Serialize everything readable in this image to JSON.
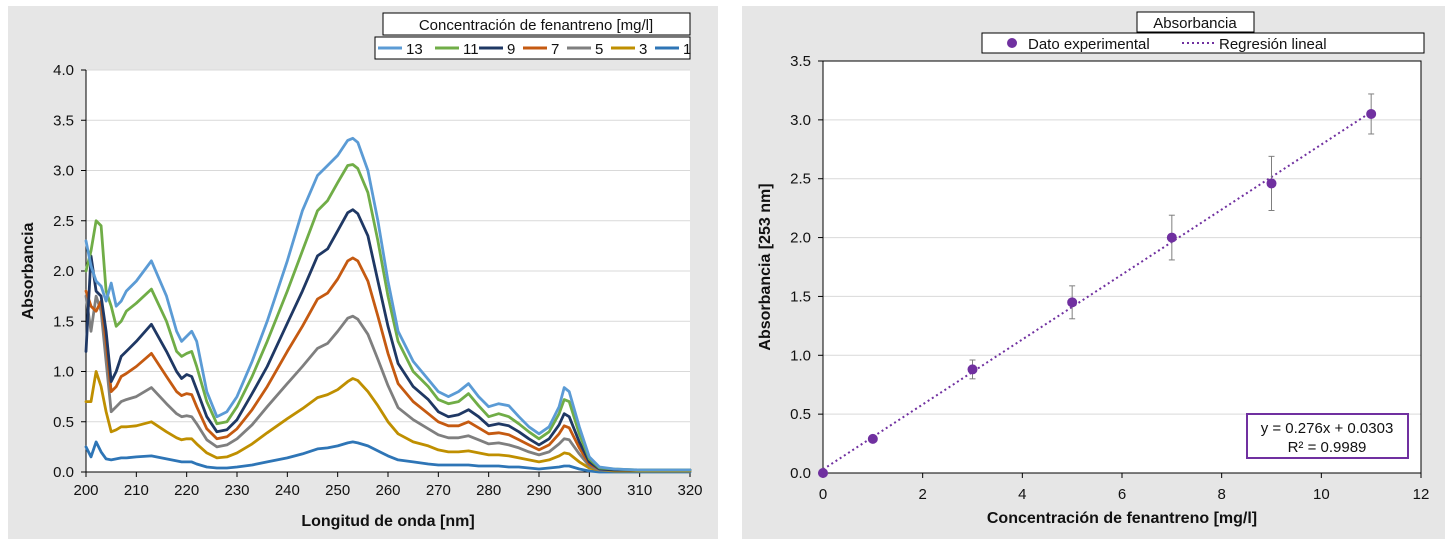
{
  "chart_data": [
    {
      "type": "line",
      "title": "",
      "xlabel": "Longitud de onda [nm]",
      "ylabel": "Absorbancia",
      "xlim": [
        200,
        320
      ],
      "ylim": [
        0,
        4
      ],
      "xticks": [
        "200",
        "210",
        "220",
        "230",
        "240",
        "250",
        "260",
        "270",
        "280",
        "290",
        "300",
        "310",
        "320"
      ],
      "yticks": [
        "0.0",
        "0.5",
        "1.0",
        "1.5",
        "2.0",
        "2.5",
        "3.0",
        "3.5",
        "4.0"
      ],
      "grid": "horizontal",
      "legend_title": "Concentración de fenantreno [mg/l]",
      "legend_position": "top-right",
      "x": [
        200,
        201,
        202,
        203,
        204,
        205,
        206,
        207,
        208,
        210,
        213,
        216,
        218,
        219,
        220,
        221,
        222,
        224,
        226,
        228,
        230,
        233,
        236,
        240,
        243,
        246,
        248,
        250,
        252,
        253,
        254,
        256,
        258,
        260,
        262,
        265,
        268,
        270,
        272,
        274,
        276,
        278,
        280,
        282,
        284,
        286,
        288,
        290,
        292,
        294,
        295,
        296,
        298,
        300,
        302,
        305,
        310,
        320
      ],
      "series": [
        {
          "name": "13",
          "color": "#5b9bd5",
          "values": [
            2.3,
            2.05,
            1.9,
            1.85,
            1.7,
            1.88,
            1.65,
            1.7,
            1.8,
            1.9,
            2.1,
            1.75,
            1.4,
            1.3,
            1.35,
            1.4,
            1.3,
            0.8,
            0.55,
            0.6,
            0.75,
            1.1,
            1.5,
            2.1,
            2.6,
            2.95,
            3.05,
            3.15,
            3.3,
            3.32,
            3.28,
            3.0,
            2.5,
            1.9,
            1.4,
            1.1,
            0.92,
            0.8,
            0.75,
            0.8,
            0.88,
            0.75,
            0.65,
            0.68,
            0.66,
            0.55,
            0.45,
            0.38,
            0.45,
            0.65,
            0.84,
            0.8,
            0.45,
            0.15,
            0.05,
            0.03,
            0.02,
            0.02
          ]
        },
        {
          "name": "11",
          "color": "#70ad47",
          "values": [
            2.0,
            2.2,
            2.5,
            2.45,
            1.8,
            1.65,
            1.45,
            1.5,
            1.6,
            1.68,
            1.82,
            1.5,
            1.2,
            1.15,
            1.18,
            1.2,
            1.05,
            0.7,
            0.48,
            0.5,
            0.65,
            0.95,
            1.3,
            1.8,
            2.2,
            2.6,
            2.7,
            2.88,
            3.05,
            3.06,
            3.02,
            2.78,
            2.3,
            1.75,
            1.3,
            1.0,
            0.85,
            0.72,
            0.68,
            0.7,
            0.78,
            0.66,
            0.55,
            0.58,
            0.55,
            0.48,
            0.4,
            0.33,
            0.4,
            0.58,
            0.72,
            0.7,
            0.38,
            0.13,
            0.04,
            0.03,
            0.02,
            0.02
          ]
        },
        {
          "name": "9",
          "color": "#1f3864",
          "values": [
            1.2,
            2.15,
            1.8,
            1.75,
            1.4,
            0.9,
            1.0,
            1.15,
            1.2,
            1.3,
            1.47,
            1.2,
            1.0,
            0.93,
            0.97,
            0.95,
            0.82,
            0.55,
            0.4,
            0.42,
            0.52,
            0.78,
            1.05,
            1.48,
            1.8,
            2.15,
            2.22,
            2.4,
            2.58,
            2.61,
            2.57,
            2.35,
            1.9,
            1.45,
            1.08,
            0.85,
            0.72,
            0.6,
            0.55,
            0.57,
            0.62,
            0.55,
            0.46,
            0.48,
            0.46,
            0.4,
            0.33,
            0.27,
            0.33,
            0.47,
            0.58,
            0.55,
            0.3,
            0.1,
            0.03,
            0.02,
            0.02,
            0.02
          ]
        },
        {
          "name": "7",
          "color": "#c55a11",
          "values": [
            1.8,
            1.65,
            1.6,
            1.7,
            1.3,
            0.8,
            0.85,
            0.95,
            0.98,
            1.05,
            1.18,
            0.95,
            0.8,
            0.76,
            0.78,
            0.77,
            0.65,
            0.43,
            0.33,
            0.35,
            0.43,
            0.62,
            0.85,
            1.2,
            1.45,
            1.72,
            1.78,
            1.92,
            2.1,
            2.13,
            2.1,
            1.9,
            1.55,
            1.18,
            0.88,
            0.7,
            0.58,
            0.5,
            0.46,
            0.46,
            0.5,
            0.44,
            0.38,
            0.39,
            0.37,
            0.32,
            0.27,
            0.22,
            0.27,
            0.38,
            0.46,
            0.44,
            0.24,
            0.08,
            0.03,
            0.02,
            0.02,
            0.02
          ]
        },
        {
          "name": "5",
          "color": "#7f7f7f",
          "values": [
            1.75,
            1.4,
            1.75,
            1.6,
            1.1,
            0.6,
            0.65,
            0.7,
            0.72,
            0.75,
            0.84,
            0.68,
            0.58,
            0.55,
            0.56,
            0.55,
            0.48,
            0.32,
            0.25,
            0.27,
            0.33,
            0.47,
            0.65,
            0.88,
            1.05,
            1.23,
            1.28,
            1.4,
            1.53,
            1.55,
            1.52,
            1.37,
            1.12,
            0.86,
            0.64,
            0.52,
            0.43,
            0.37,
            0.34,
            0.34,
            0.36,
            0.32,
            0.28,
            0.29,
            0.27,
            0.24,
            0.2,
            0.17,
            0.2,
            0.28,
            0.33,
            0.32,
            0.18,
            0.06,
            0.02,
            0.02,
            0.02,
            0.02
          ]
        },
        {
          "name": "3",
          "color": "#bf8f00",
          "values": [
            0.7,
            0.7,
            1.0,
            0.85,
            0.6,
            0.4,
            0.42,
            0.45,
            0.45,
            0.46,
            0.5,
            0.4,
            0.34,
            0.32,
            0.33,
            0.33,
            0.28,
            0.19,
            0.14,
            0.15,
            0.19,
            0.28,
            0.39,
            0.53,
            0.63,
            0.74,
            0.77,
            0.82,
            0.9,
            0.93,
            0.91,
            0.8,
            0.66,
            0.5,
            0.38,
            0.3,
            0.26,
            0.22,
            0.2,
            0.2,
            0.21,
            0.19,
            0.17,
            0.17,
            0.16,
            0.14,
            0.12,
            0.1,
            0.12,
            0.16,
            0.19,
            0.18,
            0.1,
            0.04,
            0.02,
            0.01,
            0.01,
            0.01
          ]
        },
        {
          "name": "1",
          "color": "#2e75b6",
          "values": [
            0.25,
            0.15,
            0.3,
            0.2,
            0.13,
            0.12,
            0.13,
            0.14,
            0.14,
            0.15,
            0.16,
            0.13,
            0.11,
            0.1,
            0.1,
            0.1,
            0.08,
            0.05,
            0.04,
            0.04,
            0.05,
            0.07,
            0.1,
            0.14,
            0.18,
            0.23,
            0.24,
            0.26,
            0.29,
            0.3,
            0.29,
            0.26,
            0.21,
            0.16,
            0.12,
            0.1,
            0.08,
            0.07,
            0.07,
            0.07,
            0.07,
            0.06,
            0.06,
            0.06,
            0.05,
            0.05,
            0.04,
            0.03,
            0.04,
            0.05,
            0.06,
            0.06,
            0.03,
            0.01,
            0.0,
            0.0,
            0.0,
            0.0
          ]
        }
      ]
    },
    {
      "type": "scatter",
      "title": "Absorbancia",
      "xlabel": "Concentración de fenantreno [mg/l]",
      "ylabel": "Absorbancia [253 nm]",
      "xlim": [
        0,
        12
      ],
      "ylim": [
        0,
        3.5
      ],
      "xticks": [
        "0",
        "2",
        "4",
        "6",
        "8",
        "10",
        "12"
      ],
      "yticks": [
        "0.0",
        "0.5",
        "1.0",
        "1.5",
        "2.0",
        "2.5",
        "3.0",
        "3.5"
      ],
      "grid": "horizontal",
      "legend_position": "top",
      "legend": [
        "Dato experimental",
        "Regresión lineal"
      ],
      "marker_color": "#7030a0",
      "points": [
        {
          "x": 0,
          "y": 0.0,
          "err": 0
        },
        {
          "x": 1,
          "y": 0.29,
          "err": 0
        },
        {
          "x": 3,
          "y": 0.88,
          "err": 0.08
        },
        {
          "x": 5,
          "y": 1.45,
          "err": 0.14
        },
        {
          "x": 7,
          "y": 2.0,
          "err": 0.19
        },
        {
          "x": 9,
          "y": 2.46,
          "err": 0.23
        },
        {
          "x": 11,
          "y": 3.05,
          "err": 0.17
        }
      ],
      "regression": {
        "slope": 0.276,
        "intercept": 0.0303,
        "x_range": [
          0,
          11
        ]
      },
      "equation_text": "y = 0.276x + 0.0303",
      "r2_text": "R² = 0.9989"
    }
  ]
}
